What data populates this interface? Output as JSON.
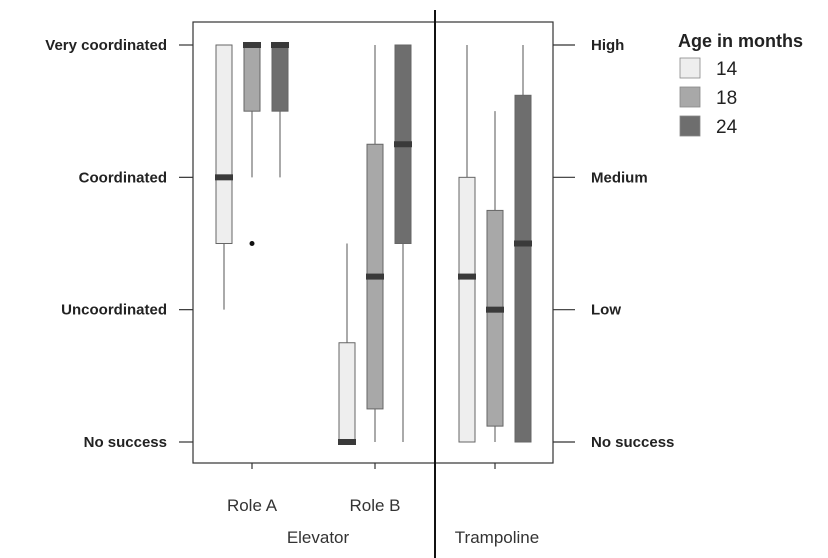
{
  "chart_data": {
    "type": "box",
    "panels": [
      {
        "name": "Elevator",
        "y_axis_side": "left",
        "y_levels": [
          "No success",
          "Uncoordinated",
          "Coordinated",
          "Very coordinated"
        ],
        "ylim": [
          0,
          3
        ],
        "categories": [
          "Role A",
          "Role B"
        ],
        "boxes": [
          {
            "category": "Role A",
            "series": "14",
            "q1": 1.5,
            "median": 2.0,
            "q3": 3.0,
            "whisker_low": 1.0,
            "whisker_high": 3.0,
            "outliers": []
          },
          {
            "category": "Role A",
            "series": "18",
            "q1": 2.5,
            "median": 3.0,
            "q3": 3.0,
            "whisker_low": 2.0,
            "whisker_high": 3.0,
            "outliers": [
              1.5
            ]
          },
          {
            "category": "Role A",
            "series": "24",
            "q1": 2.5,
            "median": 3.0,
            "q3": 3.0,
            "whisker_low": 2.0,
            "whisker_high": 3.0,
            "outliers": []
          },
          {
            "category": "Role B",
            "series": "14",
            "q1": 0.0,
            "median": 0.0,
            "q3": 0.75,
            "whisker_low": 0.0,
            "whisker_high": 1.5,
            "outliers": []
          },
          {
            "category": "Role B",
            "series": "18",
            "q1": 0.25,
            "median": 1.25,
            "q3": 2.25,
            "whisker_low": 0.0,
            "whisker_high": 3.0,
            "outliers": []
          },
          {
            "category": "Role B",
            "series": "24",
            "q1": 1.5,
            "median": 2.25,
            "q3": 3.0,
            "whisker_low": 0.0,
            "whisker_high": 3.0,
            "outliers": []
          }
        ]
      },
      {
        "name": "Trampoline",
        "y_axis_side": "right",
        "y_levels": [
          "No success",
          "Low",
          "Medium",
          "High"
        ],
        "ylim": [
          0,
          3
        ],
        "categories": [
          ""
        ],
        "boxes": [
          {
            "category": "",
            "series": "14",
            "q1": 0.0,
            "median": 1.25,
            "q3": 2.0,
            "whisker_low": 0.0,
            "whisker_high": 3.0,
            "outliers": []
          },
          {
            "category": "",
            "series": "18",
            "q1": 0.12,
            "median": 1.0,
            "q3": 1.75,
            "whisker_low": 0.0,
            "whisker_high": 2.5,
            "outliers": []
          },
          {
            "category": "",
            "series": "24",
            "q1": 0.0,
            "median": 1.5,
            "q3": 2.62,
            "whisker_low": 0.0,
            "whisker_high": 3.0,
            "outliers": []
          }
        ]
      }
    ],
    "legend": {
      "title": "Age in months",
      "placement": "top-right",
      "entries": [
        {
          "label": "14",
          "color": "#eeeeee"
        },
        {
          "label": "18",
          "color": "#a8a8a8"
        },
        {
          "label": "24",
          "color": "#6e6e6e"
        }
      ]
    },
    "median_color": "#3a3a3a",
    "grid": false
  }
}
